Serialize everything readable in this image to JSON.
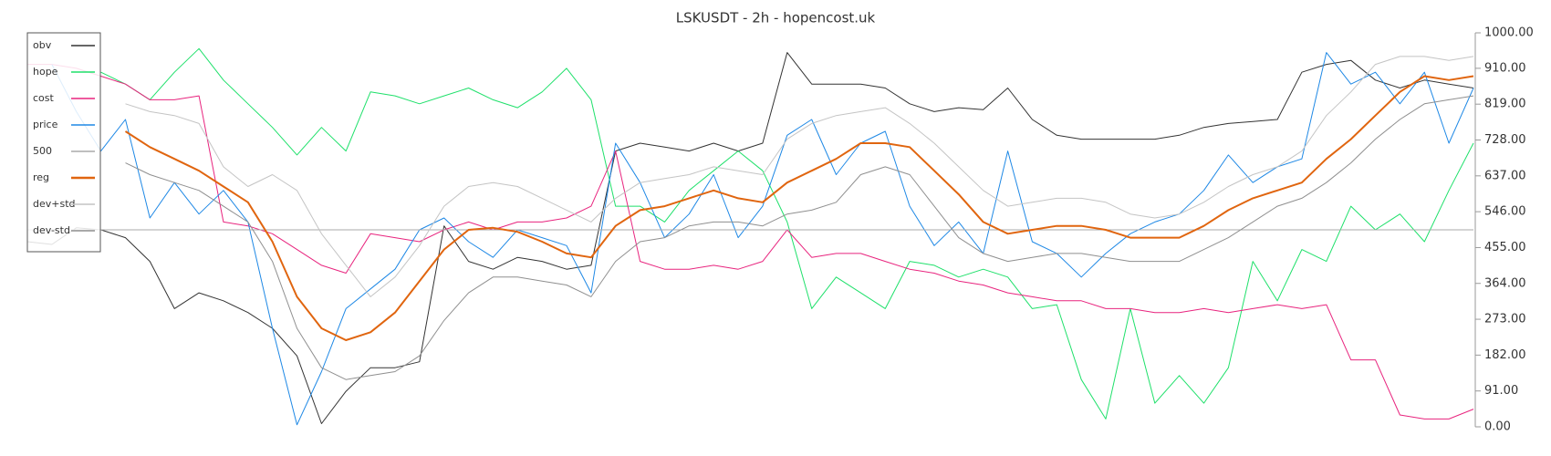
{
  "chart_data": {
    "type": "line",
    "title": "LSKUSDT - 2h - hopencost.uk",
    "categories": [
      null,
      null,
      null,
      null,
      null,
      null,
      null,
      null,
      null,
      null,
      null,
      null,
      null,
      null,
      null,
      null,
      null,
      null,
      null,
      null,
      null,
      null,
      null,
      null,
      null,
      null,
      null,
      null,
      null,
      null,
      null,
      null,
      null,
      null,
      null,
      null,
      null,
      null,
      null,
      null,
      null,
      null,
      null,
      null,
      null,
      null,
      null,
      null,
      null,
      null,
      null,
      null,
      null,
      null,
      null,
      null,
      null,
      null,
      null,
      null
    ],
    "ylim": [
      0,
      1000
    ],
    "yticks": [
      {
        "value": 0,
        "label": "0.00"
      },
      {
        "value": 91,
        "label": "91.00"
      },
      {
        "value": 182,
        "label": "182.00"
      },
      {
        "value": 273,
        "label": "273.00"
      },
      {
        "value": 364,
        "label": "364.00"
      },
      {
        "value": 455,
        "label": "455.00"
      },
      {
        "value": 546,
        "label": "546.00"
      },
      {
        "value": 637,
        "label": "637.00"
      },
      {
        "value": 728,
        "label": "728.00"
      },
      {
        "value": 819,
        "label": "819.00"
      },
      {
        "value": 910,
        "label": "910.00"
      },
      {
        "value": 1000,
        "label": "1000.00"
      }
    ],
    "legend": "top-left",
    "series": [
      {
        "name": "obv",
        "color": "#333333",
        "width": 1,
        "values": [
          470,
          463,
          505,
          500,
          480,
          420,
          300,
          340,
          320,
          290,
          250,
          180,
          8,
          90,
          150,
          150,
          165,
          510,
          420,
          400,
          430,
          420,
          400,
          410,
          700,
          720,
          710,
          700,
          720,
          700,
          720,
          950,
          870,
          870,
          870,
          860,
          820,
          800,
          810,
          805,
          860,
          780,
          740,
          730,
          730,
          730,
          730,
          740,
          760,
          770,
          775,
          780,
          900,
          920,
          930,
          880,
          860,
          880,
          870,
          860
        ]
      },
      {
        "name": "hope",
        "color": "#1ee06a",
        "width": 1,
        "values": [
          null,
          null,
          null,
          900,
          870,
          830,
          900,
          960,
          880,
          820,
          760,
          690,
          760,
          700,
          850,
          840,
          820,
          840,
          860,
          830,
          810,
          850,
          910,
          830,
          560,
          560,
          520,
          600,
          650,
          700,
          650,
          520,
          300,
          380,
          340,
          300,
          420,
          410,
          380,
          400,
          380,
          300,
          310,
          120,
          20,
          300,
          60,
          130,
          60,
          150,
          420,
          320,
          450,
          420,
          560,
          500,
          540,
          470,
          600,
          720
        ]
      },
      {
        "name": "cost",
        "color": "#e8247e",
        "width": 1,
        "values": [
          920,
          920,
          910,
          890,
          870,
          830,
          830,
          840,
          520,
          510,
          490,
          450,
          410,
          390,
          490,
          480,
          470,
          500,
          520,
          500,
          520,
          520,
          530,
          560,
          700,
          420,
          400,
          400,
          410,
          400,
          420,
          500,
          430,
          440,
          440,
          420,
          400,
          390,
          370,
          360,
          340,
          330,
          320,
          320,
          300,
          300,
          290,
          290,
          300,
          290,
          300,
          310,
          300,
          310,
          170,
          170,
          30,
          20,
          20,
          45
        ]
      },
      {
        "name": "price",
        "color": "#1e88e5",
        "width": 1,
        "values": [
          null,
          920,
          800,
          700,
          780,
          530,
          620,
          540,
          600,
          520,
          250,
          5,
          140,
          300,
          350,
          400,
          500,
          530,
          470,
          430,
          500,
          480,
          460,
          340,
          720,
          620,
          480,
          540,
          640,
          480,
          560,
          740,
          780,
          640,
          720,
          750,
          560,
          460,
          520,
          440,
          700,
          470,
          440,
          380,
          440,
          490,
          520,
          540,
          600,
          690,
          620,
          660,
          680,
          950,
          870,
          900,
          820,
          900,
          720,
          860
        ]
      },
      {
        "name": "500",
        "color": "#aaaaaa",
        "width": 1,
        "values": [
          500,
          500,
          500,
          500,
          500,
          500,
          500,
          500,
          500,
          500,
          500,
          500,
          500,
          500,
          500,
          500,
          500,
          500,
          500,
          500,
          500,
          500,
          500,
          500,
          500,
          500,
          500,
          500,
          500,
          500,
          500,
          500,
          500,
          500,
          500,
          500,
          500,
          500,
          500,
          500,
          500,
          500,
          500,
          500,
          500,
          500,
          500,
          500,
          500,
          500,
          500,
          500,
          500,
          500,
          500,
          500,
          500,
          500,
          500,
          500
        ]
      },
      {
        "name": "reg",
        "color": "#e0650f",
        "width": 2,
        "values": [
          null,
          null,
          null,
          null,
          750,
          710,
          680,
          650,
          610,
          570,
          470,
          330,
          250,
          220,
          240,
          290,
          370,
          450,
          500,
          505,
          495,
          470,
          440,
          430,
          510,
          550,
          560,
          580,
          600,
          580,
          570,
          620,
          650,
          680,
          720,
          720,
          710,
          650,
          590,
          520,
          490,
          500,
          510,
          510,
          500,
          480,
          480,
          480,
          510,
          550,
          580,
          600,
          620,
          680,
          730,
          790,
          850,
          890,
          880,
          890
        ]
      },
      {
        "name": "dev+std",
        "color": "#c4c4c4",
        "width": 1,
        "values": [
          null,
          null,
          null,
          null,
          820,
          800,
          790,
          770,
          660,
          610,
          640,
          600,
          490,
          410,
          330,
          380,
          460,
          560,
          610,
          620,
          610,
          580,
          550,
          520,
          580,
          620,
          630,
          640,
          660,
          650,
          640,
          730,
          770,
          790,
          800,
          810,
          770,
          720,
          660,
          600,
          560,
          570,
          580,
          580,
          570,
          540,
          530,
          540,
          570,
          610,
          640,
          660,
          700,
          790,
          850,
          920,
          940,
          940,
          930,
          940
        ]
      },
      {
        "name": "dev-std",
        "color": "#8f8f8f",
        "width": 1,
        "values": [
          null,
          null,
          null,
          null,
          670,
          640,
          620,
          600,
          560,
          520,
          420,
          250,
          150,
          120,
          130,
          140,
          180,
          270,
          340,
          380,
          380,
          370,
          360,
          330,
          420,
          470,
          480,
          510,
          520,
          520,
          510,
          540,
          550,
          570,
          640,
          660,
          640,
          560,
          480,
          440,
          420,
          430,
          440,
          440,
          430,
          420,
          420,
          420,
          450,
          480,
          520,
          560,
          580,
          620,
          670,
          730,
          780,
          820,
          830,
          840
        ]
      }
    ]
  }
}
